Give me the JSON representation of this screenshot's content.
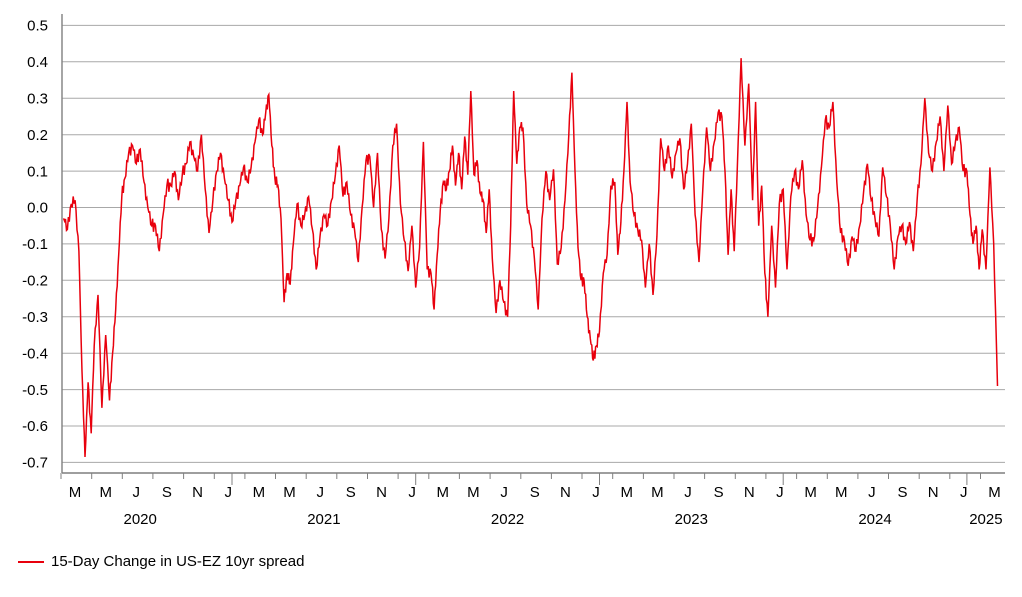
{
  "colors": {
    "line": "#e8000d",
    "grid": "#a8a8a8",
    "axis": "#7f7f7f",
    "text": "#000000",
    "background": "#ffffff"
  },
  "chart_data": {
    "type": "line",
    "title": "",
    "grid": "horizontal",
    "y_axis": {
      "min": -0.7,
      "max": 0.5,
      "step": 0.1,
      "labels": [
        "0.5",
        "0.4",
        "0.3",
        "0.2",
        "0.1",
        "0.0",
        "-0.1",
        "-0.2",
        "-0.3",
        "-0.4",
        "-0.5",
        "-0.6",
        "-0.7"
      ]
    },
    "x_axis": {
      "start_month": "2020-02",
      "end_month": "2025-03",
      "month_letters": [
        "M",
        "M",
        "J",
        "S",
        "N",
        "J",
        "M",
        "M",
        "J",
        "S",
        "N",
        "J",
        "M",
        "M",
        "J",
        "S",
        "N",
        "J",
        "M",
        "M",
        "J",
        "S",
        "N",
        "J",
        "M",
        "M",
        "J",
        "S",
        "N",
        "J",
        "M"
      ],
      "year_labels": [
        "2020",
        "2021",
        "2022",
        "2023",
        "2024",
        "2025"
      ]
    },
    "legend": {
      "position": "bottom-left"
    },
    "series": [
      {
        "name": "15-Day Change in US-EZ 10yr spread",
        "color": "#e8000d",
        "monthly": [
          {
            "month": "2020-02",
            "values": [
              -0.03,
              -0.06,
              0.01,
              0.02
            ]
          },
          {
            "month": "2020-03",
            "values": [
              -0.12,
              -0.45,
              -0.685,
              -0.48,
              -0.62
            ]
          },
          {
            "month": "2020-04",
            "values": [
              -0.38,
              -0.24,
              -0.55,
              -0.35
            ]
          },
          {
            "month": "2020-05",
            "values": [
              -0.53,
              -0.4,
              -0.28,
              -0.13,
              0.03
            ]
          },
          {
            "month": "2020-06",
            "values": [
              0.08,
              0.15,
              0.17,
              0.12
            ]
          },
          {
            "month": "2020-07",
            "values": [
              0.16,
              0.07,
              0.0,
              -0.05
            ]
          },
          {
            "month": "2020-08",
            "values": [
              -0.05,
              -0.12,
              -0.02,
              0.06
            ]
          },
          {
            "month": "2020-09",
            "values": [
              0.06,
              0.1,
              0.02,
              0.09
            ]
          },
          {
            "month": "2020-10",
            "values": [
              0.12,
              0.18,
              0.14,
              0.1
            ]
          },
          {
            "month": "2020-11",
            "values": [
              0.2,
              0.05,
              -0.07,
              0.02
            ]
          },
          {
            "month": "2020-12",
            "values": [
              0.1,
              0.15,
              0.08,
              0.02
            ]
          },
          {
            "month": "2021-01",
            "values": [
              -0.04,
              0.02,
              0.06,
              0.11
            ]
          },
          {
            "month": "2021-02",
            "values": [
              0.07,
              0.11,
              0.18,
              0.24
            ]
          },
          {
            "month": "2021-03",
            "values": [
              0.2,
              0.26,
              0.31,
              0.17,
              0.08
            ]
          },
          {
            "month": "2021-04",
            "values": [
              0.06,
              -0.03,
              -0.26,
              -0.18,
              -0.21
            ]
          },
          {
            "month": "2021-05",
            "values": [
              -0.1,
              0.01,
              -0.05,
              -0.02
            ]
          },
          {
            "month": "2021-06",
            "values": [
              0.03,
              -0.06,
              -0.17,
              -0.08
            ]
          },
          {
            "month": "2021-07",
            "values": [
              -0.02,
              -0.05,
              0.02,
              0.09
            ]
          },
          {
            "month": "2021-08",
            "values": [
              0.17,
              0.03,
              0.07,
              -0.02
            ]
          },
          {
            "month": "2021-09",
            "values": [
              -0.06,
              -0.15,
              0.0,
              0.13
            ]
          },
          {
            "month": "2021-10",
            "values": [
              0.14,
              0.0,
              0.15,
              -0.06
            ]
          },
          {
            "month": "2021-11",
            "values": [
              -0.14,
              -0.03,
              0.17,
              0.23
            ]
          },
          {
            "month": "2021-12",
            "values": [
              0.01,
              -0.09,
              -0.175,
              -0.05
            ]
          },
          {
            "month": "2022-01",
            "values": [
              -0.22,
              -0.11,
              0.18,
              -0.17
            ]
          },
          {
            "month": "2022-02",
            "values": [
              -0.18,
              -0.28,
              -0.13,
              -0.01,
              0.07
            ]
          },
          {
            "month": "2022-03",
            "values": [
              0.05,
              0.1,
              0.17,
              0.06,
              0.15
            ]
          },
          {
            "month": "2022-04",
            "values": [
              0.05,
              0.195,
              0.09,
              0.32,
              0.09
            ]
          },
          {
            "month": "2022-05",
            "values": [
              0.13,
              0.04,
              0.02,
              -0.07,
              0.05
            ]
          },
          {
            "month": "2022-06",
            "values": [
              -0.14,
              -0.29,
              -0.2,
              -0.26
            ]
          },
          {
            "month": "2022-07",
            "values": [
              -0.3,
              -0.05,
              0.32,
              0.12,
              0.22
            ]
          },
          {
            "month": "2022-08",
            "values": [
              0.22,
              0.01,
              -0.05,
              -0.14
            ]
          },
          {
            "month": "2022-09",
            "values": [
              -0.28,
              -0.03,
              0.1,
              0.02
            ]
          },
          {
            "month": "2022-10",
            "values": [
              0.105,
              -0.155,
              -0.11,
              0.02
            ]
          },
          {
            "month": "2022-11",
            "values": [
              0.2,
              0.37,
              0.1,
              -0.11,
              -0.2
            ]
          },
          {
            "month": "2022-12",
            "values": [
              -0.2,
              -0.3,
              -0.36,
              -0.42,
              -0.38
            ]
          },
          {
            "month": "2023-01",
            "values": [
              -0.34,
              -0.18,
              -0.13,
              0.06
            ]
          },
          {
            "month": "2023-02",
            "values": [
              0.07,
              -0.13,
              -0.04,
              0.1,
              0.29
            ]
          },
          {
            "month": "2023-03",
            "values": [
              0.07,
              -0.02,
              -0.06,
              -0.09
            ]
          },
          {
            "month": "2023-04",
            "values": [
              -0.22,
              -0.1,
              -0.24,
              -0.08
            ]
          },
          {
            "month": "2023-05",
            "values": [
              0.19,
              0.1,
              0.17,
              0.08
            ]
          },
          {
            "month": "2023-06",
            "values": [
              0.15,
              0.19,
              0.05,
              0.12
            ]
          },
          {
            "month": "2023-07",
            "values": [
              0.23,
              -0.02,
              -0.15,
              0.05
            ]
          },
          {
            "month": "2023-08",
            "values": [
              0.22,
              0.1,
              0.18,
              0.26
            ]
          },
          {
            "month": "2023-09",
            "values": [
              0.25,
              0.1,
              -0.13,
              0.05,
              -0.12
            ]
          },
          {
            "month": "2023-10",
            "values": [
              0.1,
              0.41,
              0.17,
              0.34
            ]
          },
          {
            "month": "2023-11",
            "values": [
              0.02,
              0.29,
              -0.05,
              0.06,
              -0.18
            ]
          },
          {
            "month": "2023-12",
            "values": [
              -0.3,
              -0.05,
              -0.22,
              0.01
            ]
          },
          {
            "month": "2024-01",
            "values": [
              0.05,
              -0.17,
              0.03,
              0.1
            ]
          },
          {
            "month": "2024-02",
            "values": [
              0.05,
              0.13,
              -0.02,
              -0.09
            ]
          },
          {
            "month": "2024-03",
            "values": [
              -0.09,
              0.0,
              0.11,
              0.24
            ]
          },
          {
            "month": "2024-04",
            "values": [
              0.22,
              0.29,
              0.07,
              -0.07
            ]
          },
          {
            "month": "2024-05",
            "values": [
              -0.09,
              -0.16,
              -0.08,
              -0.12
            ]
          },
          {
            "month": "2024-06",
            "values": [
              -0.05,
              0.04,
              0.12,
              0.02
            ]
          },
          {
            "month": "2024-07",
            "values": [
              -0.03,
              -0.08,
              0.11,
              0.03
            ]
          },
          {
            "month": "2024-08",
            "values": [
              -0.05,
              -0.17,
              -0.08,
              -0.05
            ]
          },
          {
            "month": "2024-09",
            "values": [
              -0.1,
              -0.04,
              -0.12,
              0.02
            ]
          },
          {
            "month": "2024-10",
            "values": [
              0.12,
              0.3,
              0.15,
              0.1
            ]
          },
          {
            "month": "2024-11",
            "values": [
              0.18,
              0.25,
              0.1,
              0.28
            ]
          },
          {
            "month": "2024-12",
            "values": [
              0.12,
              0.18,
              0.22,
              0.1
            ]
          },
          {
            "month": "2025-01",
            "values": [
              0.1,
              -0.02,
              -0.1,
              -0.05,
              -0.17
            ]
          },
          {
            "month": "2025-02",
            "values": [
              -0.06,
              -0.17,
              0.11,
              -0.1
            ]
          },
          {
            "month": "2025-03",
            "values": [
              -0.49
            ]
          }
        ]
      }
    ]
  }
}
